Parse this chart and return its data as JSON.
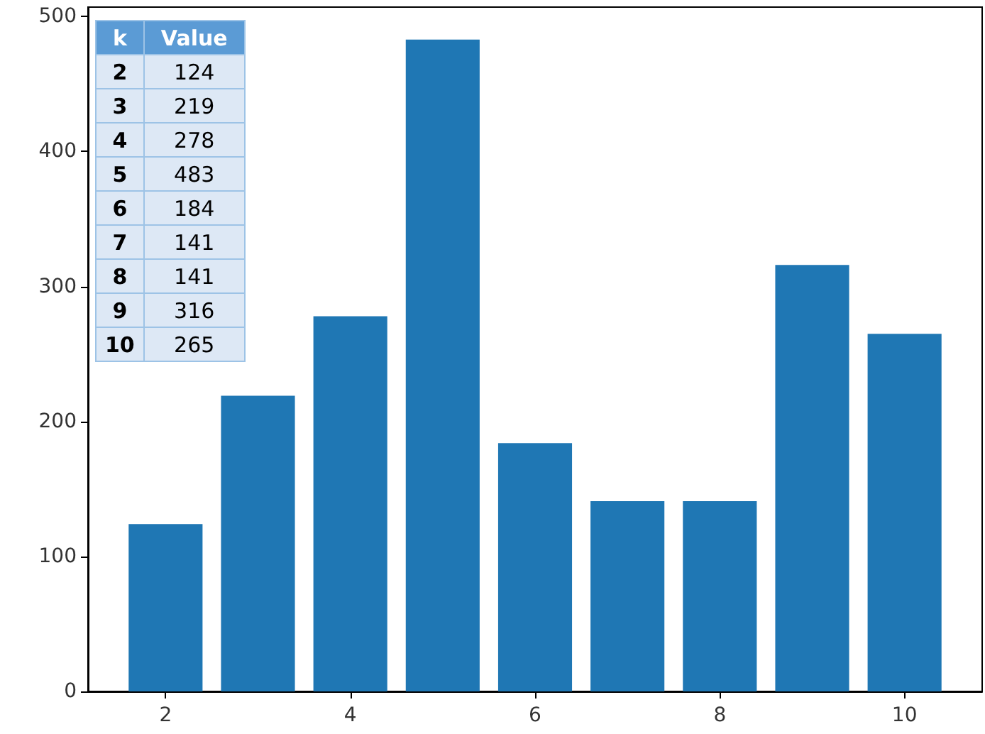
{
  "chart_data": {
    "type": "bar",
    "x": [
      2,
      3,
      4,
      5,
      6,
      7,
      8,
      9,
      10
    ],
    "values": [
      124,
      219,
      278,
      483,
      184,
      141,
      141,
      316,
      265
    ],
    "color": "#1f77b4",
    "xlim": [
      1.16,
      10.84
    ],
    "xticks": [
      2,
      4,
      6,
      8,
      10
    ],
    "ylim": [
      0,
      507
    ],
    "yticks": [
      0,
      100,
      200,
      300,
      400,
      500
    ],
    "grid": false,
    "annotations": [
      "k",
      "Value",
      "2",
      "124",
      "3",
      "219",
      "4",
      "278",
      "5",
      "483",
      "6",
      "184",
      "7",
      "141",
      "8",
      "141",
      "9",
      "316",
      "10",
      "265"
    ]
  }
}
